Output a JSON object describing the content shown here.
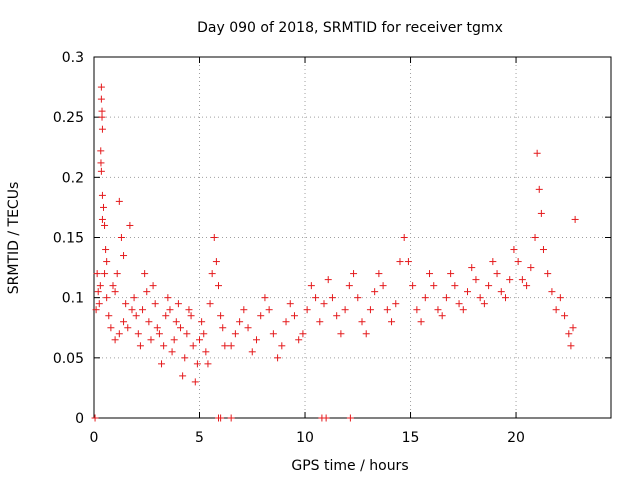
{
  "chart_data": {
    "type": "scatter",
    "title": "Day 090 of 2018, SRMTID for receiver tgmx",
    "xlabel": "GPS time / hours",
    "ylabel": "SRMTID / TECUs",
    "xlim": [
      0,
      24.5
    ],
    "ylim": [
      0,
      0.3
    ],
    "xticks": [
      0,
      5,
      10,
      15,
      20
    ],
    "xtick_labels": [
      "0",
      "5",
      "10",
      "15",
      "20"
    ],
    "yticks": [
      0,
      0.05,
      0.1,
      0.15,
      0.2,
      0.25,
      0.3
    ],
    "ytick_labels": [
      "0",
      "0.05",
      "0.1",
      "0.15",
      "0.2",
      "0.25",
      "0.3"
    ],
    "grid": true,
    "marker": "+",
    "color": "#e41a1c",
    "zero_points_x": [
      0.05,
      5.9,
      6.0,
      6.5,
      10.8,
      11.0,
      12.15
    ],
    "series": [
      {
        "name": "SRMTID",
        "points": [
          [
            0.1,
            0.09
          ],
          [
            0.15,
            0.12
          ],
          [
            0.2,
            0.105
          ],
          [
            0.25,
            0.095
          ],
          [
            0.3,
            0.11
          ],
          [
            0.35,
            0.275
          ],
          [
            0.35,
            0.265
          ],
          [
            0.38,
            0.255
          ],
          [
            0.38,
            0.25
          ],
          [
            0.4,
            0.24
          ],
          [
            0.32,
            0.222
          ],
          [
            0.33,
            0.212
          ],
          [
            0.35,
            0.205
          ],
          [
            0.4,
            0.185
          ],
          [
            0.45,
            0.175
          ],
          [
            0.4,
            0.165
          ],
          [
            0.5,
            0.16
          ],
          [
            0.55,
            0.14
          ],
          [
            0.6,
            0.13
          ],
          [
            0.5,
            0.12
          ],
          [
            0.6,
            0.1
          ],
          [
            0.7,
            0.085
          ],
          [
            0.8,
            0.075
          ],
          [
            0.9,
            0.11
          ],
          [
            1.0,
            0.105
          ],
          [
            1.1,
            0.12
          ],
          [
            1.2,
            0.18
          ],
          [
            1.3,
            0.15
          ],
          [
            1.4,
            0.135
          ],
          [
            1.5,
            0.095
          ],
          [
            1.0,
            0.065
          ],
          [
            1.2,
            0.07
          ],
          [
            1.4,
            0.08
          ],
          [
            1.6,
            0.075
          ],
          [
            1.7,
            0.16
          ],
          [
            1.8,
            0.09
          ],
          [
            1.9,
            0.1
          ],
          [
            2.0,
            0.085
          ],
          [
            2.1,
            0.07
          ],
          [
            2.2,
            0.06
          ],
          [
            2.3,
            0.09
          ],
          [
            2.4,
            0.12
          ],
          [
            2.5,
            0.105
          ],
          [
            2.6,
            0.08
          ],
          [
            2.7,
            0.065
          ],
          [
            2.8,
            0.11
          ],
          [
            2.9,
            0.095
          ],
          [
            3.0,
            0.075
          ],
          [
            3.1,
            0.07
          ],
          [
            3.2,
            0.045
          ],
          [
            3.3,
            0.06
          ],
          [
            3.4,
            0.085
          ],
          [
            3.5,
            0.1
          ],
          [
            3.6,
            0.09
          ],
          [
            3.7,
            0.055
          ],
          [
            3.8,
            0.065
          ],
          [
            3.9,
            0.08
          ],
          [
            4.0,
            0.095
          ],
          [
            4.1,
            0.075
          ],
          [
            4.2,
            0.035
          ],
          [
            4.3,
            0.05
          ],
          [
            4.4,
            0.07
          ],
          [
            4.5,
            0.09
          ],
          [
            4.6,
            0.085
          ],
          [
            4.7,
            0.06
          ],
          [
            4.8,
            0.03
          ],
          [
            4.9,
            0.045
          ],
          [
            5.0,
            0.065
          ],
          [
            5.1,
            0.08
          ],
          [
            5.2,
            0.07
          ],
          [
            5.3,
            0.055
          ],
          [
            5.4,
            0.045
          ],
          [
            5.5,
            0.095
          ],
          [
            5.6,
            0.12
          ],
          [
            5.7,
            0.15
          ],
          [
            5.8,
            0.13
          ],
          [
            5.9,
            0.11
          ],
          [
            6.0,
            0.085
          ],
          [
            6.1,
            0.075
          ],
          [
            6.2,
            0.06
          ],
          [
            6.5,
            0.06
          ],
          [
            6.7,
            0.07
          ],
          [
            6.9,
            0.08
          ],
          [
            7.1,
            0.09
          ],
          [
            7.3,
            0.075
          ],
          [
            7.5,
            0.055
          ],
          [
            7.7,
            0.065
          ],
          [
            7.9,
            0.085
          ],
          [
            8.1,
            0.1
          ],
          [
            8.3,
            0.09
          ],
          [
            8.5,
            0.07
          ],
          [
            8.7,
            0.05
          ],
          [
            8.9,
            0.06
          ],
          [
            9.1,
            0.08
          ],
          [
            9.3,
            0.095
          ],
          [
            9.5,
            0.085
          ],
          [
            9.7,
            0.065
          ],
          [
            9.9,
            0.07
          ],
          [
            10.1,
            0.09
          ],
          [
            10.3,
            0.11
          ],
          [
            10.5,
            0.1
          ],
          [
            10.7,
            0.08
          ],
          [
            10.9,
            0.095
          ],
          [
            11.1,
            0.115
          ],
          [
            11.3,
            0.1
          ],
          [
            11.5,
            0.085
          ],
          [
            11.7,
            0.07
          ],
          [
            11.9,
            0.09
          ],
          [
            12.1,
            0.11
          ],
          [
            12.3,
            0.12
          ],
          [
            12.5,
            0.1
          ],
          [
            12.7,
            0.08
          ],
          [
            12.9,
            0.07
          ],
          [
            13.1,
            0.09
          ],
          [
            13.3,
            0.105
          ],
          [
            13.5,
            0.12
          ],
          [
            13.7,
            0.11
          ],
          [
            13.9,
            0.09
          ],
          [
            14.1,
            0.08
          ],
          [
            14.3,
            0.095
          ],
          [
            14.5,
            0.13
          ],
          [
            14.7,
            0.15
          ],
          [
            14.9,
            0.13
          ],
          [
            15.1,
            0.11
          ],
          [
            15.3,
            0.09
          ],
          [
            15.5,
            0.08
          ],
          [
            15.7,
            0.1
          ],
          [
            15.9,
            0.12
          ],
          [
            16.1,
            0.11
          ],
          [
            16.3,
            0.09
          ],
          [
            16.5,
            0.085
          ],
          [
            16.7,
            0.1
          ],
          [
            16.9,
            0.12
          ],
          [
            17.1,
            0.11
          ],
          [
            17.3,
            0.095
          ],
          [
            17.5,
            0.09
          ],
          [
            17.7,
            0.105
          ],
          [
            17.9,
            0.125
          ],
          [
            18.1,
            0.115
          ],
          [
            18.3,
            0.1
          ],
          [
            18.5,
            0.095
          ],
          [
            18.7,
            0.11
          ],
          [
            18.9,
            0.13
          ],
          [
            19.1,
            0.12
          ],
          [
            19.3,
            0.105
          ],
          [
            19.5,
            0.1
          ],
          [
            19.7,
            0.115
          ],
          [
            19.9,
            0.14
          ],
          [
            20.1,
            0.13
          ],
          [
            20.3,
            0.115
          ],
          [
            20.5,
            0.11
          ],
          [
            20.7,
            0.125
          ],
          [
            20.9,
            0.15
          ],
          [
            21.0,
            0.22
          ],
          [
            21.1,
            0.19
          ],
          [
            21.2,
            0.17
          ],
          [
            21.3,
            0.14
          ],
          [
            21.5,
            0.12
          ],
          [
            21.7,
            0.105
          ],
          [
            21.9,
            0.09
          ],
          [
            22.1,
            0.1
          ],
          [
            22.3,
            0.085
          ],
          [
            22.5,
            0.07
          ],
          [
            22.6,
            0.06
          ],
          [
            22.7,
            0.075
          ],
          [
            22.8,
            0.165
          ]
        ]
      }
    ]
  }
}
